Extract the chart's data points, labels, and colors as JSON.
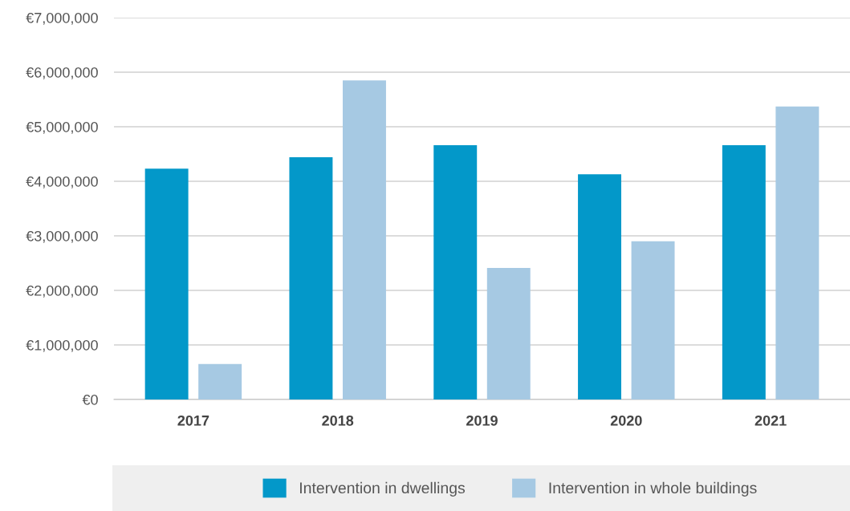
{
  "chart_data": {
    "type": "bar",
    "categories": [
      "2017",
      "2018",
      "2019",
      "2020",
      "2021"
    ],
    "series": [
      {
        "name": "Intervention in dwellings",
        "color": "#0398c9",
        "values": [
          4230000,
          4440000,
          4660000,
          4130000,
          4660000
        ]
      },
      {
        "name": "Intervention in whole buildings",
        "color": "#a6c9e3",
        "values": [
          650000,
          5850000,
          2410000,
          2900000,
          5370000
        ]
      }
    ],
    "ylim": [
      0,
      7000000
    ],
    "yticks": [
      {
        "value": 0,
        "label": "€0"
      },
      {
        "value": 1000000,
        "label": "€1,000,000"
      },
      {
        "value": 2000000,
        "label": "€2,000,000"
      },
      {
        "value": 3000000,
        "label": "€3,000,000"
      },
      {
        "value": 4000000,
        "label": "€4,000,000"
      },
      {
        "value": 5000000,
        "label": "€5,000,000"
      },
      {
        "value": 6000000,
        "label": "€6,000,000"
      },
      {
        "value": 7000000,
        "label": "€7,000,000"
      }
    ],
    "grid": "y",
    "legend": "bottom"
  }
}
